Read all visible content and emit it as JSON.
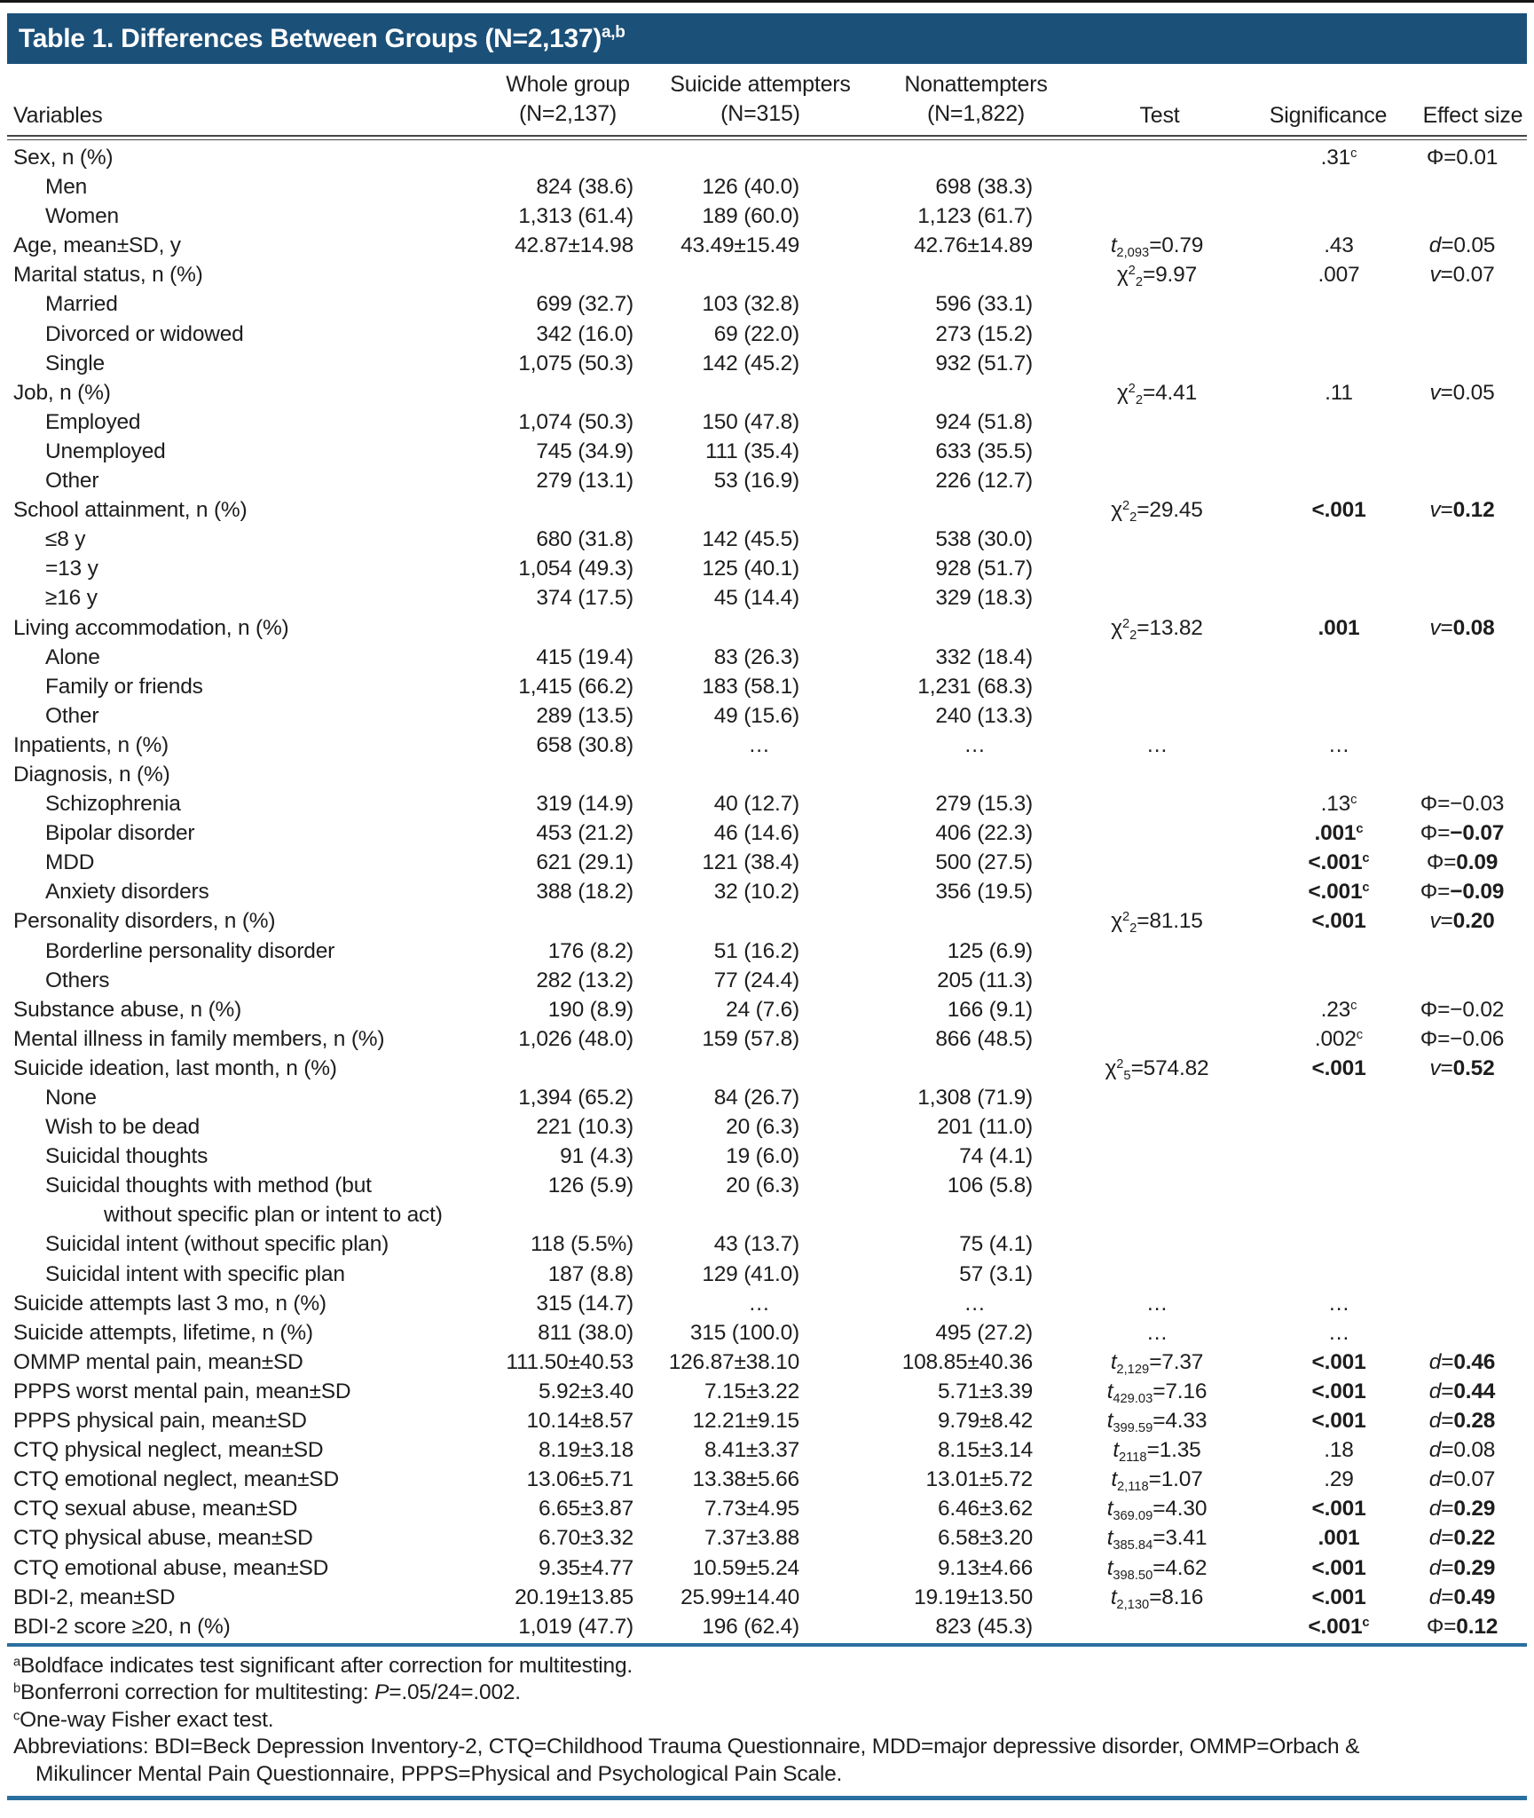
{
  "title": {
    "text": "Table 1. Differences Between Groups (N=2,137)",
    "sup": "a,b"
  },
  "columns": {
    "variables": "Variables",
    "whole_1": "Whole group",
    "whole_2": "(N=2,137)",
    "att_1": "Suicide attempters",
    "att_2": "(N=315)",
    "non_1": "Nonattempters",
    "non_2": "(N=1,822)",
    "test": "Test",
    "significance": "Significance",
    "effect": "Effect size"
  },
  "colors": {
    "title_bar": "#1b5079",
    "rule_blue": "#2a6fa0",
    "rule_dark": "#454545",
    "text": "#1d1d1d"
  },
  "rows": [
    {
      "l": "Sex, n (%)",
      "i": 0,
      "s": {
        "v": ".31",
        "c": true
      },
      "e": {
        "y": "Φ",
        "v": "0.01"
      }
    },
    {
      "l": "Men",
      "i": 1,
      "w": "824 (38.6)",
      "a": "126 (40.0)",
      "n": "698 (38.3)"
    },
    {
      "l": "Women",
      "i": 1,
      "w": "1,313 (61.4)",
      "a": "189 (60.0)",
      "n": "1,123 (61.7)"
    },
    {
      "l": "Age, mean±SD, y",
      "i": 0,
      "w": "42.87±14.98",
      "a": "43.49±15.49",
      "n": "42.76±14.89",
      "t": {
        "k": "t",
        "sub": "2,093",
        "v": "0.79"
      },
      "s": {
        "v": ".43"
      },
      "e": {
        "y": "d",
        "v": "0.05"
      }
    },
    {
      "l": "Marital status, n (%)",
      "i": 0,
      "t": {
        "k": "x",
        "sub": "2",
        "v": "9.97"
      },
      "s": {
        "v": ".007"
      },
      "e": {
        "y": "v",
        "v": "0.07"
      }
    },
    {
      "l": "Married",
      "i": 1,
      "w": "699 (32.7)",
      "a": "103 (32.8)",
      "n": "596 (33.1)"
    },
    {
      "l": "Divorced or widowed",
      "i": 1,
      "w": "342 (16.0)",
      "a": "69 (22.0)",
      "n": "273 (15.2)"
    },
    {
      "l": "Single",
      "i": 1,
      "w": "1,075 (50.3)",
      "a": "142 (45.2)",
      "n": "932 (51.7)"
    },
    {
      "l": "Job, n (%)",
      "i": 0,
      "t": {
        "k": "x",
        "sub": "2",
        "v": "4.41"
      },
      "s": {
        "v": ".11"
      },
      "e": {
        "y": "v",
        "v": "0.05"
      }
    },
    {
      "l": "Employed",
      "i": 1,
      "w": "1,074 (50.3)",
      "a": "150 (47.8)",
      "n": "924 (51.8)"
    },
    {
      "l": "Unemployed",
      "i": 1,
      "w": "745 (34.9)",
      "a": "111 (35.4)",
      "n": "633 (35.5)"
    },
    {
      "l": "Other",
      "i": 1,
      "w": "279 (13.1)",
      "a": "53 (16.9)",
      "n": "226 (12.7)"
    },
    {
      "l": "School attainment, n (%)",
      "i": 0,
      "t": {
        "k": "x",
        "sub": "2",
        "v": "29.45"
      },
      "s": {
        "v": "<.001",
        "b": true
      },
      "e": {
        "y": "v",
        "v": "0.12",
        "b": true
      }
    },
    {
      "l": "≤8 y",
      "i": 1,
      "w": "680 (31.8)",
      "a": "142 (45.5)",
      "n": "538 (30.0)"
    },
    {
      "l": "=13 y",
      "i": 1,
      "w": "1,054 (49.3)",
      "a": "125 (40.1)",
      "n": "928 (51.7)"
    },
    {
      "l": "≥16 y",
      "i": 1,
      "w": "374 (17.5)",
      "a": "45 (14.4)",
      "n": "329 (18.3)"
    },
    {
      "l": "Living accommodation, n (%)",
      "i": 0,
      "t": {
        "k": "x",
        "sub": "2",
        "v": "13.82"
      },
      "s": {
        "v": ".001",
        "b": true
      },
      "e": {
        "y": "v",
        "v": "0.08",
        "b": true
      }
    },
    {
      "l": "Alone",
      "i": 1,
      "w": "415 (19.4)",
      "a": "83 (26.3)",
      "n": "332 (18.4)"
    },
    {
      "l": "Family or friends",
      "i": 1,
      "w": "1,415 (66.2)",
      "a": "183 (58.1)",
      "n": "1,231 (68.3)"
    },
    {
      "l": "Other",
      "i": 1,
      "w": "289 (13.5)",
      "a": "49 (15.6)",
      "n": "240 (13.3)"
    },
    {
      "l": "Inpatients, n (%)",
      "i": 0,
      "w": "658 (30.8)",
      "a": "…",
      "n": "…",
      "t": {
        "d": true
      },
      "s": {
        "d": true
      }
    },
    {
      "l": "Diagnosis, n (%)",
      "i": 0
    },
    {
      "l": "Schizophrenia",
      "i": 1,
      "w": "319 (14.9)",
      "a": "40 (12.7)",
      "n": "279 (15.3)",
      "s": {
        "v": ".13",
        "c": true
      },
      "e": {
        "y": "Φ",
        "v": "−0.03"
      }
    },
    {
      "l": "Bipolar disorder",
      "i": 1,
      "w": "453 (21.2)",
      "a": "46 (14.6)",
      "n": "406 (22.3)",
      "s": {
        "v": ".001",
        "c": true,
        "b": true
      },
      "e": {
        "y": "Φ",
        "v": "−0.07",
        "b": true
      }
    },
    {
      "l": "MDD",
      "i": 1,
      "w": "621 (29.1)",
      "a": "121 (38.4)",
      "n": "500 (27.5)",
      "s": {
        "v": "<.001",
        "c": true,
        "b": true
      },
      "e": {
        "y": "Φ",
        "v": "0.09",
        "b": true
      }
    },
    {
      "l": "Anxiety disorders",
      "i": 1,
      "w": "388 (18.2)",
      "a": "32 (10.2)",
      "n": "356 (19.5)",
      "s": {
        "v": "<.001",
        "c": true,
        "b": true
      },
      "e": {
        "y": "Φ",
        "v": "−0.09",
        "b": true
      }
    },
    {
      "l": "Personality disorders, n (%)",
      "i": 0,
      "t": {
        "k": "x",
        "sub": "2",
        "v": "81.15"
      },
      "s": {
        "v": "<.001",
        "b": true
      },
      "e": {
        "y": "v",
        "v": "0.20",
        "b": true
      }
    },
    {
      "l": "Borderline personality disorder",
      "i": 1,
      "w": "176 (8.2)",
      "a": "51 (16.2)",
      "n": "125 (6.9)"
    },
    {
      "l": "Others",
      "i": 1,
      "w": "282 (13.2)",
      "a": "77 (24.4)",
      "n": "205 (11.3)"
    },
    {
      "l": "Substance abuse, n (%)",
      "i": 0,
      "w": "190 (8.9)",
      "a": "24 (7.6)",
      "n": "166 (9.1)",
      "s": {
        "v": ".23",
        "c": true
      },
      "e": {
        "y": "Φ",
        "v": "−0.02"
      }
    },
    {
      "l": "Mental illness in family members, n (%)",
      "i": 0,
      "w": "1,026 (48.0)",
      "a": "159 (57.8)",
      "n": "866 (48.5)",
      "s": {
        "v": ".002",
        "c": true
      },
      "e": {
        "y": "Φ",
        "v": "−0.06"
      }
    },
    {
      "l": "Suicide ideation, last month, n (%)",
      "i": 0,
      "t": {
        "k": "x",
        "sub": "5",
        "v": "574.82"
      },
      "s": {
        "v": "<.001",
        "b": true
      },
      "e": {
        "y": "v",
        "v": "0.52",
        "b": true
      }
    },
    {
      "l": "None",
      "i": 1,
      "w": "1,394 (65.2)",
      "a": "84 (26.7)",
      "n": "1,308 (71.9)"
    },
    {
      "l": "Wish to be dead",
      "i": 1,
      "w": "221 (10.3)",
      "a": "20 (6.3)",
      "n": "201 (11.0)"
    },
    {
      "l": "Suicidal thoughts",
      "i": 1,
      "w": "91 (4.3)",
      "a": "19 (6.0)",
      "n": "74 (4.1)"
    },
    {
      "l": "Suicidal thoughts with method (but",
      "l2": "without specific plan or intent to act)",
      "i": 1,
      "w": "126 (5.9)",
      "a": "20 (6.3)",
      "n": "106 (5.8)"
    },
    {
      "l": "Suicidal intent (without specific plan)",
      "i": 1,
      "w": "118 (5.5%)",
      "a": "43 (13.7)",
      "n": "75 (4.1)"
    },
    {
      "l": "Suicidal intent with specific plan",
      "i": 1,
      "w": "187 (8.8)",
      "a": "129 (41.0)",
      "n": "57 (3.1)"
    },
    {
      "l": "Suicide attempts last 3 mo, n (%)",
      "i": 0,
      "w": "315 (14.7)",
      "a": "…",
      "n": "…",
      "t": {
        "d": true
      },
      "s": {
        "d": true
      }
    },
    {
      "l": "Suicide attempts, lifetime, n (%)",
      "i": 0,
      "w": "811 (38.0)",
      "a": "315 (100.0)",
      "n": "495 (27.2)",
      "t": {
        "d": true
      },
      "s": {
        "d": true
      }
    },
    {
      "l": "OMMP mental pain, mean±SD",
      "i": 0,
      "w": "111.50±40.53",
      "a": "126.87±38.10",
      "n": "108.85±40.36",
      "t": {
        "k": "t",
        "sub": "2,129",
        "v": "7.37"
      },
      "s": {
        "v": "<.001",
        "b": true
      },
      "e": {
        "y": "d",
        "v": "0.46",
        "b": true
      }
    },
    {
      "l": "PPPS worst mental pain, mean±SD",
      "i": 0,
      "w": "5.92±3.40",
      "a": "7.15±3.22",
      "n": "5.71±3.39",
      "t": {
        "k": "t",
        "sub": "429.03",
        "v": "7.16"
      },
      "s": {
        "v": "<.001",
        "b": true
      },
      "e": {
        "y": "d",
        "v": "0.44",
        "b": true
      }
    },
    {
      "l": "PPPS physical pain, mean±SD",
      "i": 0,
      "w": "10.14±8.57",
      "a": "12.21±9.15",
      "n": "9.79±8.42",
      "t": {
        "k": "t",
        "sub": "399.59",
        "v": "4.33"
      },
      "s": {
        "v": "<.001",
        "b": true
      },
      "e": {
        "y": "d",
        "v": "0.28",
        "b": true
      }
    },
    {
      "l": "CTQ physical neglect, mean±SD",
      "i": 0,
      "w": "8.19±3.18",
      "a": "8.41±3.37",
      "n": "8.15±3.14",
      "t": {
        "k": "t",
        "sub": "2118",
        "v": "1.35"
      },
      "s": {
        "v": ".18"
      },
      "e": {
        "y": "d",
        "v": "0.08"
      }
    },
    {
      "l": "CTQ emotional neglect, mean±SD",
      "i": 0,
      "w": "13.06±5.71",
      "a": "13.38±5.66",
      "n": "13.01±5.72",
      "t": {
        "k": "t",
        "sub": "2,118",
        "v": "1.07"
      },
      "s": {
        "v": ".29"
      },
      "e": {
        "y": "d",
        "v": "0.07"
      }
    },
    {
      "l": "CTQ sexual abuse, mean±SD",
      "i": 0,
      "w": "6.65±3.87",
      "a": "7.73±4.95",
      "n": "6.46±3.62",
      "t": {
        "k": "t",
        "sub": "369.09",
        "v": "4.30"
      },
      "s": {
        "v": "<.001",
        "b": true
      },
      "e": {
        "y": "d",
        "v": "0.29",
        "b": true
      }
    },
    {
      "l": "CTQ physical abuse, mean±SD",
      "i": 0,
      "w": "6.70±3.32",
      "a": "7.37±3.88",
      "n": "6.58±3.20",
      "t": {
        "k": "t",
        "sub": "385.84",
        "v": "3.41"
      },
      "s": {
        "v": ".001",
        "b": true
      },
      "e": {
        "y": "d",
        "v": "0.22",
        "b": true
      }
    },
    {
      "l": "CTQ emotional abuse, mean±SD",
      "i": 0,
      "w": "9.35±4.77",
      "a": "10.59±5.24",
      "n": "9.13±4.66",
      "t": {
        "k": "t",
        "sub": "398.50",
        "v": "4.62"
      },
      "s": {
        "v": "<.001",
        "b": true
      },
      "e": {
        "y": "d",
        "v": "0.29",
        "b": true
      }
    },
    {
      "l": "BDI-2, mean±SD",
      "i": 0,
      "w": "20.19±13.85",
      "a": "25.99±14.40",
      "n": "19.19±13.50",
      "t": {
        "k": "t",
        "sub": "2,130",
        "v": "8.16"
      },
      "s": {
        "v": "<.001",
        "b": true
      },
      "e": {
        "y": "d",
        "v": "0.49",
        "b": true
      }
    },
    {
      "l": "BDI-2 score ≥20, n (%)",
      "i": 0,
      "w": "1,019 (47.7)",
      "a": "196 (62.4)",
      "n": "823 (45.3)",
      "s": {
        "v": "<.001",
        "c": true,
        "b": true
      },
      "e": {
        "y": "Φ",
        "v": "0.12",
        "b": true
      }
    }
  ],
  "footnotes": [
    {
      "sup": "a",
      "text": "Boldface indicates test significant after correction for multitesting."
    },
    {
      "sup": "b",
      "pre": "Bonferroni correction for multitesting: ",
      "italic": "P",
      "post": "=.05/24=.002."
    },
    {
      "sup": "c",
      "text": "One-way Fisher exact test."
    }
  ],
  "abbreviations_line1": "Abbreviations: BDI=Beck Depression Inventory-2, CTQ=Childhood Trauma Questionnaire, MDD=major depressive disorder, OMMP=Orbach &",
  "abbreviations_line2": "Mikulincer Mental Pain Questionnaire, PPPS=Physical and Psychological Pain Scale."
}
